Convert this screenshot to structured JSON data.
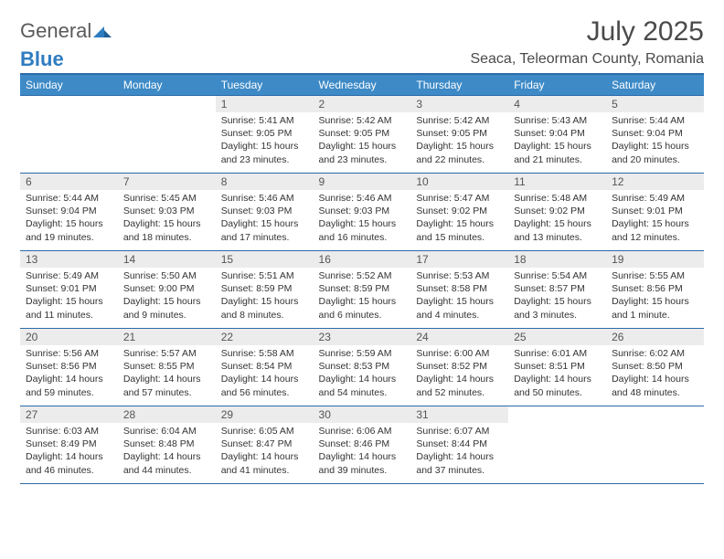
{
  "logo": {
    "line1": "General",
    "line2": "Blue"
  },
  "title": "July 2025",
  "location": "Seaca, Teleorman County, Romania",
  "colors": {
    "header_bg": "#3d8ac7",
    "header_text": "#ffffff",
    "rule": "#2b6aa8",
    "daynum_bg": "#ececec",
    "daynum_text": "#555555",
    "body_text": "#333333",
    "title_text": "#4a4a4a",
    "logo_gray": "#5a5a5a",
    "logo_blue": "#2e7cc0",
    "page_bg": "#ffffff"
  },
  "weekdays": [
    "Sunday",
    "Monday",
    "Tuesday",
    "Wednesday",
    "Thursday",
    "Friday",
    "Saturday"
  ],
  "weeks": [
    [
      {
        "n": "",
        "sr": "",
        "ss": "",
        "dl": ""
      },
      {
        "n": "",
        "sr": "",
        "ss": "",
        "dl": ""
      },
      {
        "n": "1",
        "sr": "Sunrise: 5:41 AM",
        "ss": "Sunset: 9:05 PM",
        "dl": "Daylight: 15 hours and 23 minutes."
      },
      {
        "n": "2",
        "sr": "Sunrise: 5:42 AM",
        "ss": "Sunset: 9:05 PM",
        "dl": "Daylight: 15 hours and 23 minutes."
      },
      {
        "n": "3",
        "sr": "Sunrise: 5:42 AM",
        "ss": "Sunset: 9:05 PM",
        "dl": "Daylight: 15 hours and 22 minutes."
      },
      {
        "n": "4",
        "sr": "Sunrise: 5:43 AM",
        "ss": "Sunset: 9:04 PM",
        "dl": "Daylight: 15 hours and 21 minutes."
      },
      {
        "n": "5",
        "sr": "Sunrise: 5:44 AM",
        "ss": "Sunset: 9:04 PM",
        "dl": "Daylight: 15 hours and 20 minutes."
      }
    ],
    [
      {
        "n": "6",
        "sr": "Sunrise: 5:44 AM",
        "ss": "Sunset: 9:04 PM",
        "dl": "Daylight: 15 hours and 19 minutes."
      },
      {
        "n": "7",
        "sr": "Sunrise: 5:45 AM",
        "ss": "Sunset: 9:03 PM",
        "dl": "Daylight: 15 hours and 18 minutes."
      },
      {
        "n": "8",
        "sr": "Sunrise: 5:46 AM",
        "ss": "Sunset: 9:03 PM",
        "dl": "Daylight: 15 hours and 17 minutes."
      },
      {
        "n": "9",
        "sr": "Sunrise: 5:46 AM",
        "ss": "Sunset: 9:03 PM",
        "dl": "Daylight: 15 hours and 16 minutes."
      },
      {
        "n": "10",
        "sr": "Sunrise: 5:47 AM",
        "ss": "Sunset: 9:02 PM",
        "dl": "Daylight: 15 hours and 15 minutes."
      },
      {
        "n": "11",
        "sr": "Sunrise: 5:48 AM",
        "ss": "Sunset: 9:02 PM",
        "dl": "Daylight: 15 hours and 13 minutes."
      },
      {
        "n": "12",
        "sr": "Sunrise: 5:49 AM",
        "ss": "Sunset: 9:01 PM",
        "dl": "Daylight: 15 hours and 12 minutes."
      }
    ],
    [
      {
        "n": "13",
        "sr": "Sunrise: 5:49 AM",
        "ss": "Sunset: 9:01 PM",
        "dl": "Daylight: 15 hours and 11 minutes."
      },
      {
        "n": "14",
        "sr": "Sunrise: 5:50 AM",
        "ss": "Sunset: 9:00 PM",
        "dl": "Daylight: 15 hours and 9 minutes."
      },
      {
        "n": "15",
        "sr": "Sunrise: 5:51 AM",
        "ss": "Sunset: 8:59 PM",
        "dl": "Daylight: 15 hours and 8 minutes."
      },
      {
        "n": "16",
        "sr": "Sunrise: 5:52 AM",
        "ss": "Sunset: 8:59 PM",
        "dl": "Daylight: 15 hours and 6 minutes."
      },
      {
        "n": "17",
        "sr": "Sunrise: 5:53 AM",
        "ss": "Sunset: 8:58 PM",
        "dl": "Daylight: 15 hours and 4 minutes."
      },
      {
        "n": "18",
        "sr": "Sunrise: 5:54 AM",
        "ss": "Sunset: 8:57 PM",
        "dl": "Daylight: 15 hours and 3 minutes."
      },
      {
        "n": "19",
        "sr": "Sunrise: 5:55 AM",
        "ss": "Sunset: 8:56 PM",
        "dl": "Daylight: 15 hours and 1 minute."
      }
    ],
    [
      {
        "n": "20",
        "sr": "Sunrise: 5:56 AM",
        "ss": "Sunset: 8:56 PM",
        "dl": "Daylight: 14 hours and 59 minutes."
      },
      {
        "n": "21",
        "sr": "Sunrise: 5:57 AM",
        "ss": "Sunset: 8:55 PM",
        "dl": "Daylight: 14 hours and 57 minutes."
      },
      {
        "n": "22",
        "sr": "Sunrise: 5:58 AM",
        "ss": "Sunset: 8:54 PM",
        "dl": "Daylight: 14 hours and 56 minutes."
      },
      {
        "n": "23",
        "sr": "Sunrise: 5:59 AM",
        "ss": "Sunset: 8:53 PM",
        "dl": "Daylight: 14 hours and 54 minutes."
      },
      {
        "n": "24",
        "sr": "Sunrise: 6:00 AM",
        "ss": "Sunset: 8:52 PM",
        "dl": "Daylight: 14 hours and 52 minutes."
      },
      {
        "n": "25",
        "sr": "Sunrise: 6:01 AM",
        "ss": "Sunset: 8:51 PM",
        "dl": "Daylight: 14 hours and 50 minutes."
      },
      {
        "n": "26",
        "sr": "Sunrise: 6:02 AM",
        "ss": "Sunset: 8:50 PM",
        "dl": "Daylight: 14 hours and 48 minutes."
      }
    ],
    [
      {
        "n": "27",
        "sr": "Sunrise: 6:03 AM",
        "ss": "Sunset: 8:49 PM",
        "dl": "Daylight: 14 hours and 46 minutes."
      },
      {
        "n": "28",
        "sr": "Sunrise: 6:04 AM",
        "ss": "Sunset: 8:48 PM",
        "dl": "Daylight: 14 hours and 44 minutes."
      },
      {
        "n": "29",
        "sr": "Sunrise: 6:05 AM",
        "ss": "Sunset: 8:47 PM",
        "dl": "Daylight: 14 hours and 41 minutes."
      },
      {
        "n": "30",
        "sr": "Sunrise: 6:06 AM",
        "ss": "Sunset: 8:46 PM",
        "dl": "Daylight: 14 hours and 39 minutes."
      },
      {
        "n": "31",
        "sr": "Sunrise: 6:07 AM",
        "ss": "Sunset: 8:44 PM",
        "dl": "Daylight: 14 hours and 37 minutes."
      },
      {
        "n": "",
        "sr": "",
        "ss": "",
        "dl": ""
      },
      {
        "n": "",
        "sr": "",
        "ss": "",
        "dl": ""
      }
    ]
  ]
}
